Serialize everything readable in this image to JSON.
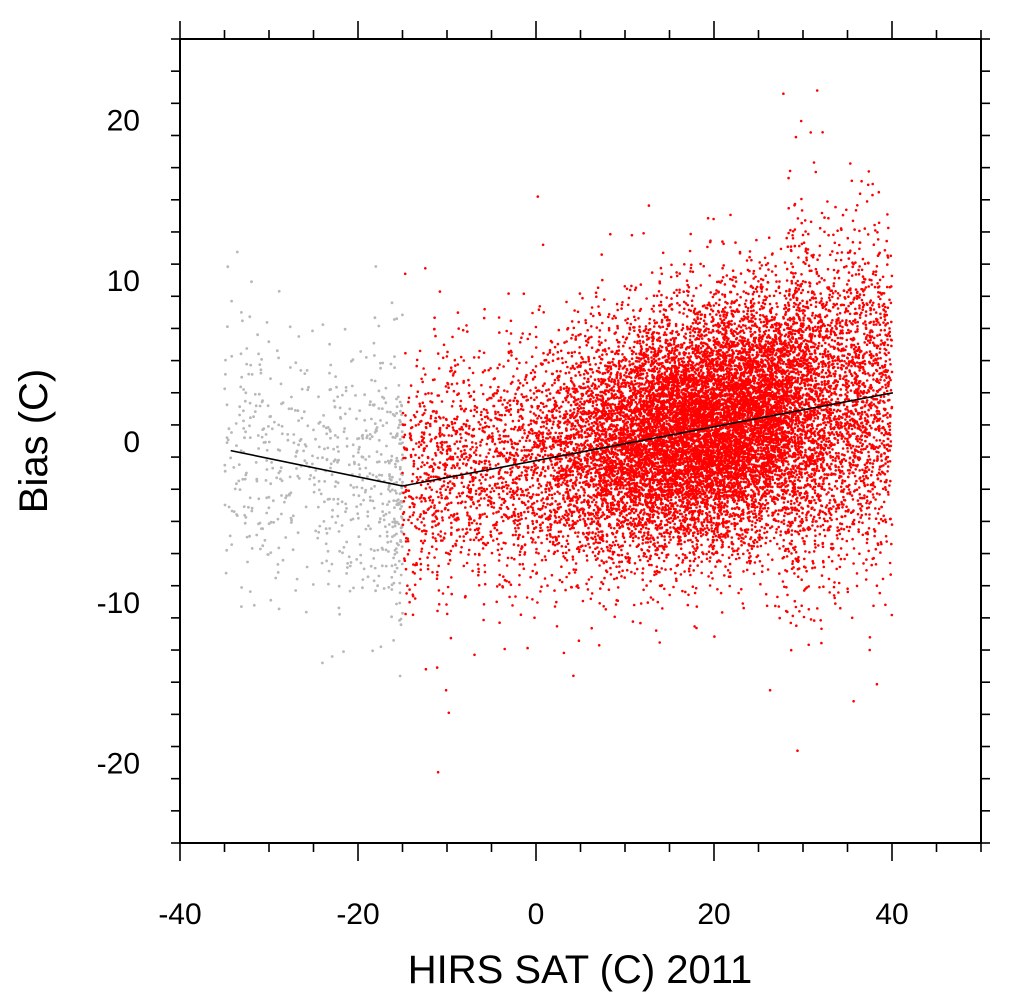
{
  "chart_data": {
    "type": "scatter",
    "title": "",
    "xlabel": "HIRS SAT (C) 2011",
    "ylabel": "Bias (C)",
    "xlim": [
      -40,
      50
    ],
    "ylim": [
      -25,
      25
    ],
    "x_ticks": [
      -40,
      -20,
      0,
      20,
      40
    ],
    "y_ticks": [
      -20,
      -10,
      0,
      10,
      20
    ],
    "x_minor_step": 5,
    "y_minor_step": 2,
    "grid": false,
    "legend": "none",
    "series": [
      {
        "color": "#b8b8b8",
        "x_range": [
          -35,
          -15
        ],
        "point_count": 650,
        "mean_bias_at_x": [
          [
            -35,
            -0.5
          ],
          [
            -15,
            -2.8
          ]
        ],
        "spread_sd": 4.2,
        "sample_outliers": [
          [
            -34.2,
            8.7
          ],
          [
            -33.1,
            8.0
          ],
          [
            -29.8,
            -9.9
          ],
          [
            -24.0,
            -13.8
          ],
          [
            -22.9,
            -13.4
          ],
          [
            -17.8,
            -9.0
          ],
          [
            -16.0,
            -12.4
          ]
        ]
      },
      {
        "color": "#ff0000",
        "x_range": [
          -15,
          40
        ],
        "point_count": 16000,
        "mean_bias_at_x": [
          [
            -15,
            -2.8
          ],
          [
            40,
            3.0
          ]
        ],
        "spread_sd": 3.7,
        "sample_outliers": [
          [
            -14.7,
            10.4
          ],
          [
            -11.0,
            -20.6
          ],
          [
            -9.8,
            -16.9
          ],
          [
            -10.1,
            -15.5
          ],
          [
            0.2,
            15.2
          ],
          [
            0.8,
            12.2
          ],
          [
            4.2,
            -14.6
          ],
          [
            26.3,
            -15.5
          ],
          [
            27.8,
            21.6
          ],
          [
            31.6,
            21.8
          ],
          [
            29.8,
            19.9
          ],
          [
            32.2,
            19.2
          ],
          [
            29.2,
            18.9
          ],
          [
            37.2,
            14.9
          ],
          [
            33.5,
            -9.6
          ]
        ]
      }
    ],
    "trend_lines": [
      {
        "color": "#000000",
        "points": [
          [
            -34.3,
            -0.6
          ],
          [
            -15,
            -2.8
          ]
        ]
      },
      {
        "color": "#000000",
        "points": [
          [
            -15,
            -2.8
          ],
          [
            40.1,
            3.0
          ]
        ]
      }
    ]
  }
}
